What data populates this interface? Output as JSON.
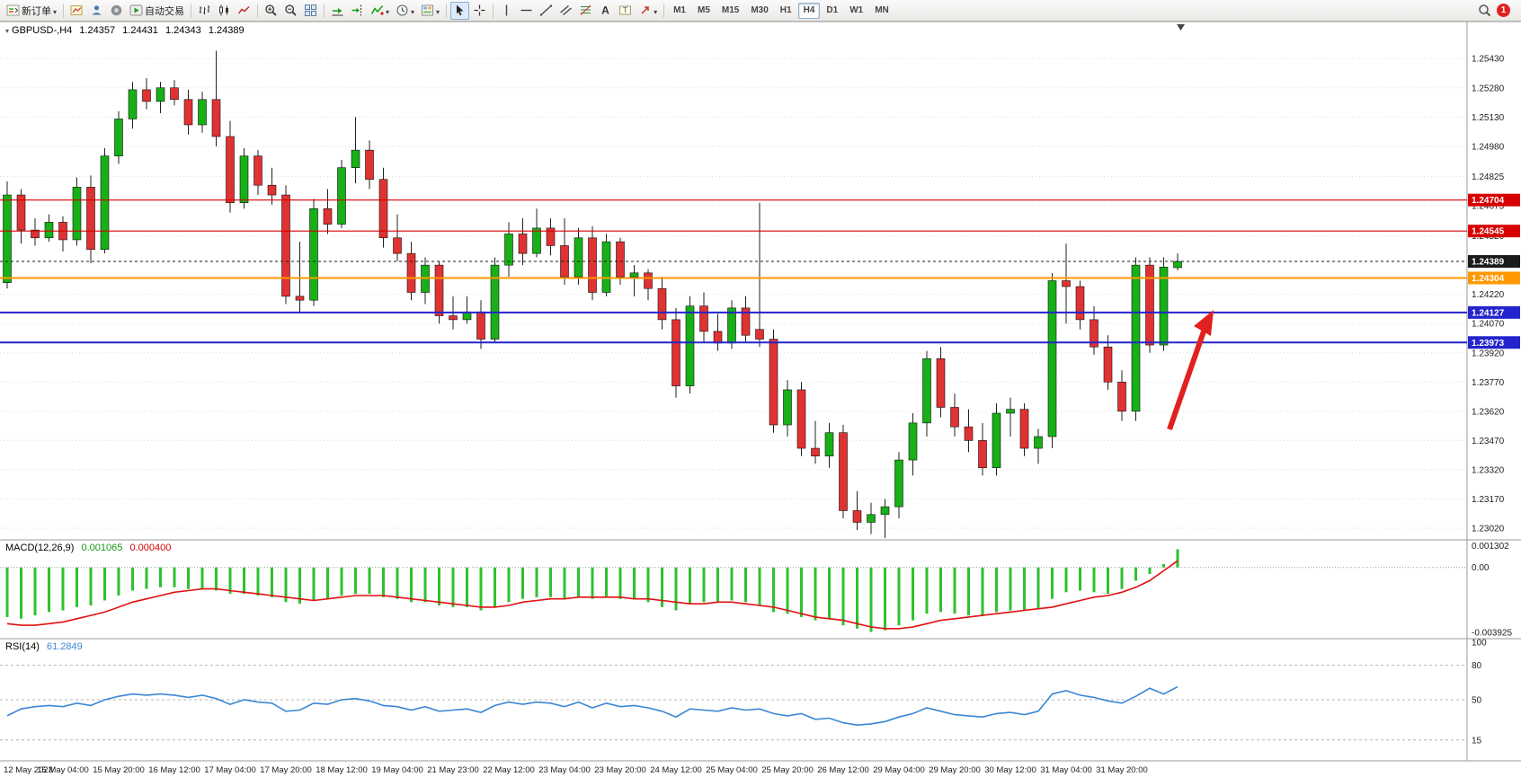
{
  "toolbar": {
    "new_order_label": "新订单",
    "autotrading_label": "自动交易",
    "timeframes": [
      "M1",
      "M5",
      "M15",
      "M30",
      "H1",
      "H4",
      "D1",
      "W1",
      "MN"
    ],
    "active_timeframe": "H4",
    "notification_count": "1"
  },
  "chart": {
    "symbol_period": "GBPUSD-,H4",
    "open": "1.24357",
    "high": "1.24431",
    "low": "1.24343",
    "close": "1.24389"
  },
  "price_axis": {
    "gridlines": [
      1.2543,
      1.2528,
      1.2513,
      1.2498,
      1.24825,
      1.24675,
      1.2452,
      1.2422,
      1.2407,
      1.2392,
      1.2377,
      1.2362,
      1.2347,
      1.2332,
      1.2317,
      1.2302
    ],
    "tags": [
      {
        "value": "1.24704",
        "color": "#d60000"
      },
      {
        "value": "1.24545",
        "color": "#d60000"
      },
      {
        "value": "1.24389",
        "color": "#1a1a1a"
      },
      {
        "value": "1.24304",
        "color": "#ff9800"
      },
      {
        "value": "1.24127",
        "color": "#2424cc"
      },
      {
        "value": "1.23973",
        "color": "#2424cc"
      }
    ]
  },
  "levels": {
    "lines": [
      {
        "price": 1.24704,
        "color": "#d60000",
        "width": 1.2
      },
      {
        "price": 1.24545,
        "color": "#d60000",
        "width": 1.2
      },
      {
        "price": 1.24304,
        "color": "#ff9800",
        "width": 2
      },
      {
        "price": 1.24127,
        "color": "#2424cc",
        "width": 2
      },
      {
        "price": 1.23973,
        "color": "#2424cc",
        "width": 2
      },
      {
        "price": 1.24389,
        "color": "#1a1a1a",
        "width": 1,
        "dash": "3,3"
      }
    ]
  },
  "macd": {
    "name": "MACD(12,26,9)",
    "value": "0.001065",
    "signal_value": "0.000400",
    "axis": [
      "0.001302",
      "0.00",
      "-0.003925"
    ]
  },
  "rsi": {
    "name": "RSI(14)",
    "value": "61.2849",
    "levels": [
      100,
      80,
      50,
      15
    ]
  },
  "time_axis": [
    "12 May 2023",
    "15 May 04:00",
    "15 May 20:00",
    "16 May 12:00",
    "17 May 04:00",
    "17 May 20:00",
    "18 May 12:00",
    "19 May 04:00",
    "21 May 23:00",
    "22 May 12:00",
    "23 May 04:00",
    "23 May 20:00",
    "24 May 12:00",
    "25 May 04:00",
    "25 May 20:00",
    "26 May 12:00",
    "29 May 04:00",
    "29 May 20:00",
    "30 May 12:00",
    "31 May 04:00",
    "31 May 20:00"
  ],
  "chart_data": {
    "type": "candlestick",
    "symbol": "GBPUSD-",
    "timeframe": "H4",
    "price_range": [
      1.2296,
      1.2562
    ],
    "candles": [
      [
        1.2428,
        1.248,
        1.2425,
        1.2473
      ],
      [
        1.2473,
        1.2476,
        1.2448,
        1.2455
      ],
      [
        1.2455,
        1.2461,
        1.2447,
        1.2451
      ],
      [
        1.2451,
        1.2463,
        1.2449,
        1.2459
      ],
      [
        1.2459,
        1.2462,
        1.2444,
        1.245
      ],
      [
        1.245,
        1.2482,
        1.2447,
        1.2477
      ],
      [
        1.2477,
        1.2483,
        1.2438,
        1.2445
      ],
      [
        1.2445,
        1.2497,
        1.2443,
        1.2493
      ],
      [
        1.2493,
        1.2516,
        1.2489,
        1.2512
      ],
      [
        1.2512,
        1.2531,
        1.2507,
        1.2527
      ],
      [
        1.2527,
        1.2533,
        1.2517,
        1.2521
      ],
      [
        1.2521,
        1.2531,
        1.2515,
        1.2528
      ],
      [
        1.2528,
        1.2532,
        1.2519,
        1.2522
      ],
      [
        1.2522,
        1.2527,
        1.2504,
        1.2509
      ],
      [
        1.2509,
        1.2526,
        1.2505,
        1.2522
      ],
      [
        1.2522,
        1.2547,
        1.2498,
        1.2503
      ],
      [
        1.2503,
        1.2511,
        1.2464,
        1.2469
      ],
      [
        1.2469,
        1.2497,
        1.2466,
        1.2493
      ],
      [
        1.2493,
        1.2496,
        1.2473,
        1.2478
      ],
      [
        1.2478,
        1.2487,
        1.2468,
        1.2473
      ],
      [
        1.2473,
        1.2478,
        1.2417,
        1.2421
      ],
      [
        1.2421,
        1.2449,
        1.2413,
        1.2419
      ],
      [
        1.2419,
        1.2471,
        1.2416,
        1.2466
      ],
      [
        1.2466,
        1.2476,
        1.2453,
        1.2458
      ],
      [
        1.2458,
        1.2491,
        1.2456,
        1.2487
      ],
      [
        1.2487,
        1.2513,
        1.2479,
        1.2496
      ],
      [
        1.2496,
        1.2501,
        1.2476,
        1.2481
      ],
      [
        1.2481,
        1.2487,
        1.2446,
        1.2451
      ],
      [
        1.2451,
        1.2463,
        1.2439,
        1.2443
      ],
      [
        1.2443,
        1.2449,
        1.2419,
        1.2423
      ],
      [
        1.2423,
        1.2441,
        1.2417,
        1.2437
      ],
      [
        1.2437,
        1.2439,
        1.2407,
        1.2411
      ],
      [
        1.2411,
        1.2421,
        1.2404,
        1.2409
      ],
      [
        1.2409,
        1.2421,
        1.2407,
        1.2413
      ],
      [
        1.2413,
        1.2419,
        1.2394,
        1.2399
      ],
      [
        1.2399,
        1.2441,
        1.2397,
        1.2437
      ],
      [
        1.2437,
        1.2459,
        1.2431,
        1.2453
      ],
      [
        1.2453,
        1.2461,
        1.2437,
        1.2443
      ],
      [
        1.2443,
        1.2466,
        1.2441,
        1.2456
      ],
      [
        1.2456,
        1.2461,
        1.2442,
        1.2447
      ],
      [
        1.2447,
        1.2461,
        1.2427,
        1.2431
      ],
      [
        1.2431,
        1.2456,
        1.2427,
        1.2451
      ],
      [
        1.2451,
        1.2457,
        1.2419,
        1.2423
      ],
      [
        1.2423,
        1.2453,
        1.2421,
        1.2449
      ],
      [
        1.2449,
        1.2451,
        1.2427,
        1.2431
      ],
      [
        1.2431,
        1.2437,
        1.2421,
        1.2433
      ],
      [
        1.2433,
        1.2435,
        1.2419,
        1.2425
      ],
      [
        1.2425,
        1.2431,
        1.2404,
        1.2409
      ],
      [
        1.2409,
        1.2415,
        1.2369,
        1.2375
      ],
      [
        1.2375,
        1.2421,
        1.2371,
        1.2416
      ],
      [
        1.2416,
        1.2423,
        1.2397,
        1.2403
      ],
      [
        1.2403,
        1.2412,
        1.2393,
        1.2397
      ],
      [
        1.2397,
        1.2419,
        1.2394,
        1.2415
      ],
      [
        1.2415,
        1.2421,
        1.2397,
        1.2401
      ],
      [
        1.2404,
        1.2469,
        1.2395,
        1.2399
      ],
      [
        1.2399,
        1.2404,
        1.2351,
        1.2355
      ],
      [
        1.2355,
        1.2378,
        1.2349,
        1.2373
      ],
      [
        1.2373,
        1.2377,
        1.2339,
        1.2343
      ],
      [
        1.2343,
        1.2357,
        1.2335,
        1.2339
      ],
      [
        1.2339,
        1.2356,
        1.2333,
        1.2351
      ],
      [
        1.2351,
        1.2355,
        1.2307,
        1.2311
      ],
      [
        1.2311,
        1.2321,
        1.2301,
        1.2305
      ],
      [
        1.2305,
        1.2315,
        1.2299,
        1.2309
      ],
      [
        1.2309,
        1.2317,
        1.2297,
        1.2313
      ],
      [
        1.2313,
        1.2341,
        1.2307,
        1.2337
      ],
      [
        1.2337,
        1.2361,
        1.2329,
        1.2356
      ],
      [
        1.2356,
        1.2393,
        1.2349,
        1.2389
      ],
      [
        1.2389,
        1.2395,
        1.2359,
        1.2364
      ],
      [
        1.2364,
        1.2371,
        1.2349,
        1.2354
      ],
      [
        1.2354,
        1.2363,
        1.2341,
        1.2347
      ],
      [
        1.2347,
        1.2356,
        1.2329,
        1.2333
      ],
      [
        1.2333,
        1.2366,
        1.2329,
        1.2361
      ],
      [
        1.2361,
        1.2369,
        1.2349,
        1.2363
      ],
      [
        1.2363,
        1.2366,
        1.2339,
        1.2343
      ],
      [
        1.2343,
        1.2353,
        1.2335,
        1.2349
      ],
      [
        1.2349,
        1.2433,
        1.2343,
        1.2429
      ],
      [
        1.2429,
        1.2448,
        1.2407,
        1.2426
      ],
      [
        1.2426,
        1.2429,
        1.2404,
        1.2409
      ],
      [
        1.2409,
        1.2416,
        1.2391,
        1.2395
      ],
      [
        1.2395,
        1.2401,
        1.2373,
        1.2377
      ],
      [
        1.2377,
        1.2383,
        1.2357,
        1.2362
      ],
      [
        1.2362,
        1.2441,
        1.2357,
        1.2437
      ],
      [
        1.2437,
        1.2441,
        1.2392,
        1.2396
      ],
      [
        1.2396,
        1.2441,
        1.2393,
        1.2436
      ],
      [
        1.24357,
        1.24431,
        1.24343,
        1.24389
      ]
    ],
    "macd_histogram": [
      -0.003,
      -0.0031,
      -0.0029,
      -0.0027,
      -0.0026,
      -0.0024,
      -0.0023,
      -0.002,
      -0.0017,
      -0.0014,
      -0.0013,
      -0.0012,
      -0.0012,
      -0.0013,
      -0.0013,
      -0.0014,
      -0.0016,
      -0.0016,
      -0.0017,
      -0.0018,
      -0.0021,
      -0.0022,
      -0.002,
      -0.0019,
      -0.0017,
      -0.0016,
      -0.0016,
      -0.0018,
      -0.0019,
      -0.0021,
      -0.0021,
      -0.0023,
      -0.0024,
      -0.0024,
      -0.0026,
      -0.0024,
      -0.0021,
      -0.0019,
      -0.0018,
      -0.0018,
      -0.0019,
      -0.0018,
      -0.0019,
      -0.0018,
      -0.0019,
      -0.0019,
      -0.0021,
      -0.0024,
      -0.0026,
      -0.0022,
      -0.0021,
      -0.0021,
      -0.002,
      -0.0021,
      -0.0023,
      -0.0027,
      -0.0028,
      -0.003,
      -0.0032,
      -0.0031,
      -0.0035,
      -0.0037,
      -0.0039,
      -0.0038,
      -0.0035,
      -0.0032,
      -0.0028,
      -0.0027,
      -0.0028,
      -0.0029,
      -0.0029,
      -0.0027,
      -0.0026,
      -0.0026,
      -0.0025,
      -0.0019,
      -0.0015,
      -0.0014,
      -0.0015,
      -0.0016,
      -0.0013,
      -0.0008,
      -0.0004,
      0.0002,
      0.0011
    ],
    "macd_signal": [
      -0.0034,
      -0.0035,
      -0.0035,
      -0.0034,
      -0.0033,
      -0.0031,
      -0.0029,
      -0.0027,
      -0.0024,
      -0.0021,
      -0.0019,
      -0.0017,
      -0.0015,
      -0.0014,
      -0.0013,
      -0.0013,
      -0.0014,
      -0.0015,
      -0.0016,
      -0.0017,
      -0.0018,
      -0.0019,
      -0.002,
      -0.0019,
      -0.0018,
      -0.0017,
      -0.0017,
      -0.0017,
      -0.0018,
      -0.0019,
      -0.002,
      -0.0021,
      -0.0022,
      -0.0023,
      -0.0024,
      -0.0024,
      -0.0023,
      -0.0021,
      -0.002,
      -0.0019,
      -0.0019,
      -0.0018,
      -0.0018,
      -0.0018,
      -0.0018,
      -0.0019,
      -0.0019,
      -0.002,
      -0.0021,
      -0.0022,
      -0.0022,
      -0.0021,
      -0.0021,
      -0.0022,
      -0.0023,
      -0.0024,
      -0.0026,
      -0.0028,
      -0.003,
      -0.0031,
      -0.0032,
      -0.0034,
      -0.0036,
      -0.0037,
      -0.0037,
      -0.0036,
      -0.0034,
      -0.0032,
      -0.0031,
      -0.003,
      -0.0029,
      -0.0028,
      -0.0027,
      -0.0026,
      -0.0025,
      -0.0024,
      -0.0022,
      -0.002,
      -0.0018,
      -0.0017,
      -0.0015,
      -0.0012,
      -0.0008,
      -0.0002,
      0.0004
    ],
    "rsi": [
      36,
      42,
      44,
      45,
      44,
      47,
      45,
      50,
      53,
      55,
      54,
      55,
      54,
      52,
      54,
      51,
      46,
      50,
      48,
      47,
      40,
      41,
      47,
      46,
      50,
      51,
      49,
      45,
      44,
      41,
      44,
      40,
      41,
      42,
      39,
      45,
      48,
      46,
      48,
      47,
      44,
      48,
      43,
      47,
      44,
      45,
      43,
      40,
      35,
      42,
      41,
      40,
      43,
      41,
      42,
      38,
      36,
      38,
      33,
      34,
      30,
      28,
      29,
      31,
      35,
      38,
      43,
      40,
      37,
      36,
      35,
      38,
      39,
      37,
      40,
      55,
      58,
      54,
      52,
      49,
      47,
      53,
      60,
      55,
      61.28
    ]
  }
}
